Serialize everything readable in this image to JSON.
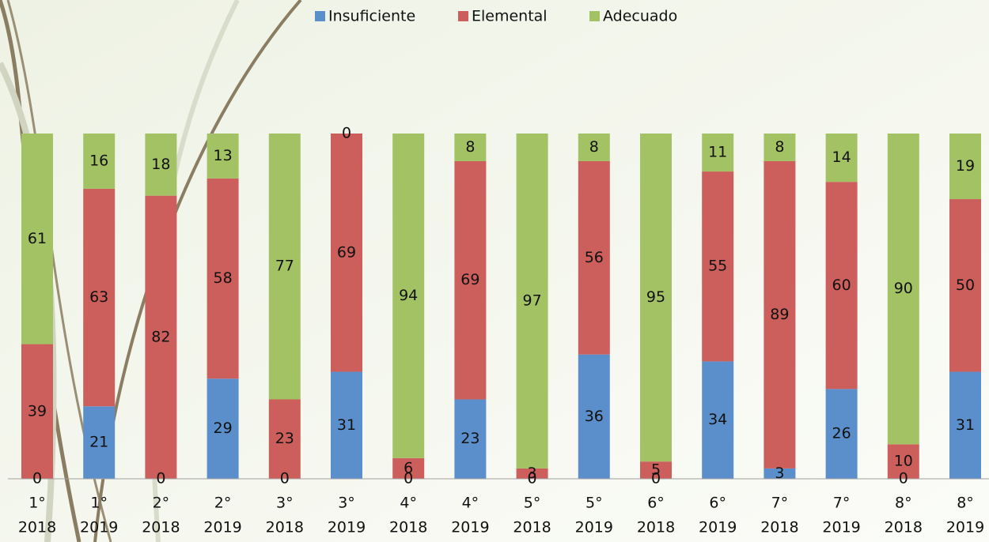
{
  "chart_data": {
    "type": "stacked_bar",
    "categories": [
      [
        "1°",
        "2018"
      ],
      [
        "1°",
        "2019"
      ],
      [
        "2°",
        "2018"
      ],
      [
        "2°",
        "2019"
      ],
      [
        "3°",
        "2018"
      ],
      [
        "3°",
        "2019"
      ],
      [
        "4°",
        "2018"
      ],
      [
        "4°",
        "2019"
      ],
      [
        "5°",
        "2018"
      ],
      [
        "5°",
        "2019"
      ],
      [
        "6°",
        "2018"
      ],
      [
        "6°",
        "2019"
      ],
      [
        "7°",
        "2018"
      ],
      [
        "7°",
        "2019"
      ],
      [
        "8°",
        "2018"
      ],
      [
        "8°",
        "2019"
      ]
    ],
    "series": [
      {
        "name": "Insuficiente",
        "color": "#5b8fcb",
        "values": [
          0,
          21,
          0,
          29,
          0,
          31,
          0,
          23,
          0,
          36,
          0,
          34,
          3,
          26,
          0,
          31
        ]
      },
      {
        "name": "Elemental",
        "color": "#cc5f5b",
        "values": [
          39,
          63,
          82,
          58,
          23,
          69,
          6,
          69,
          3,
          56,
          5,
          55,
          89,
          60,
          10,
          50
        ]
      },
      {
        "name": "Adecuado",
        "color": "#a3c264",
        "values": [
          61,
          16,
          18,
          13,
          77,
          0,
          94,
          8,
          97,
          8,
          95,
          11,
          8,
          14,
          90,
          19
        ]
      }
    ],
    "ylim": [
      0,
      100
    ]
  }
}
